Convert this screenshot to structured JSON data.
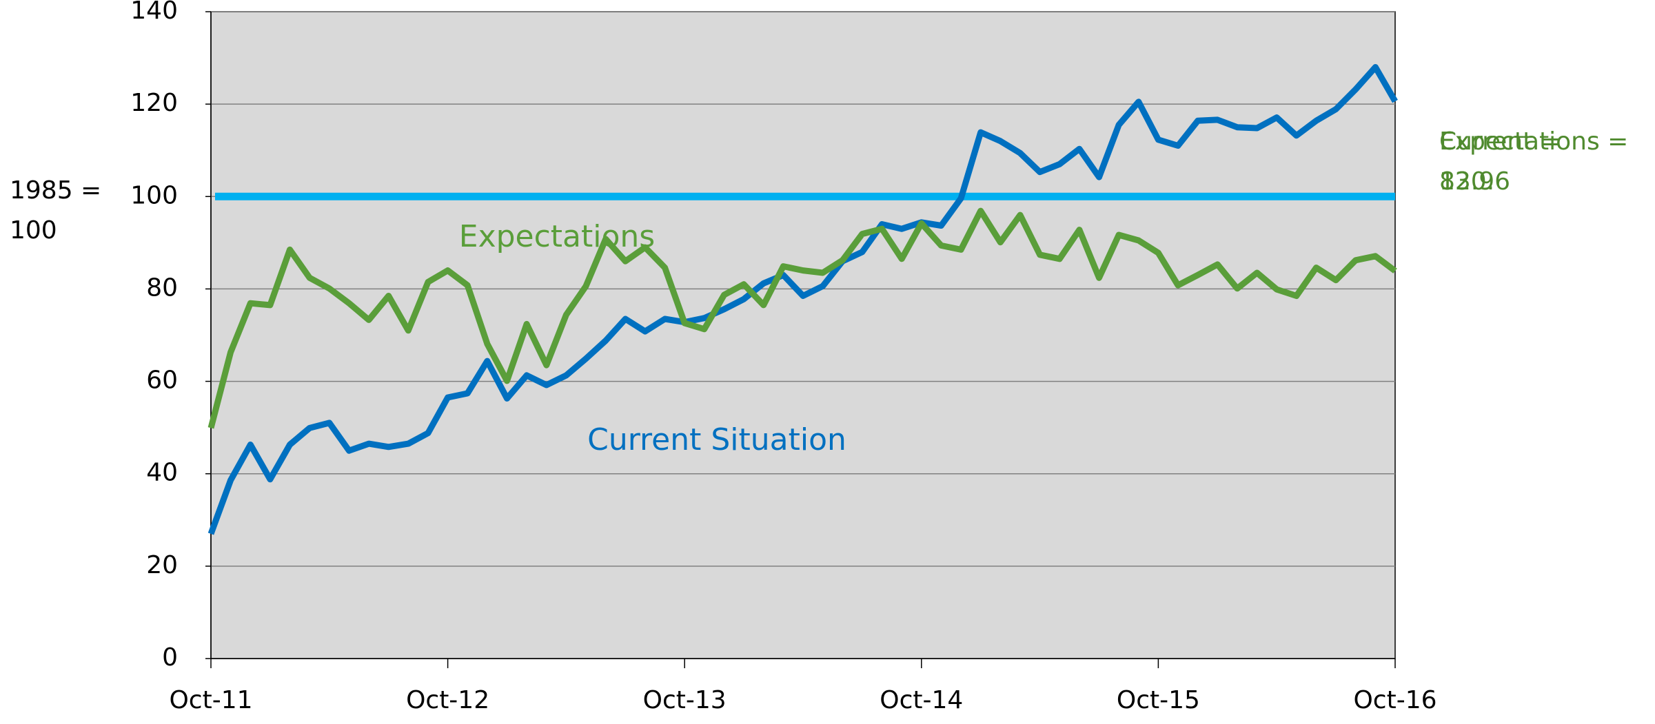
{
  "chart_data": {
    "type": "line",
    "ylabel": "1985 = 100",
    "categories": [
      "Oct-11",
      null,
      null,
      null,
      null,
      null,
      null,
      null,
      null,
      null,
      null,
      null,
      "Oct-12",
      null,
      null,
      null,
      null,
      null,
      null,
      null,
      null,
      null,
      null,
      null,
      "Oct-13",
      null,
      null,
      null,
      null,
      null,
      null,
      null,
      null,
      null,
      null,
      null,
      "Oct-14",
      null,
      null,
      null,
      null,
      null,
      null,
      null,
      null,
      null,
      null,
      null,
      "Oct-15",
      null,
      null,
      null,
      null,
      null,
      null,
      null,
      null,
      null,
      null,
      null,
      "Oct-16"
    ],
    "series": [
      {
        "name": "Current Situation",
        "color": "#0070c0",
        "values": [
          27,
          38.6,
          46.3,
          38.8,
          46.3,
          49.9,
          51,
          45,
          46.5,
          45.8,
          46.5,
          48.8,
          56.5,
          57.4,
          64.4,
          56.3,
          61.3,
          59.2,
          61.3,
          64.9,
          68.8,
          73.5,
          70.8,
          73.5,
          72.8,
          73.7,
          75.6,
          77.8,
          81.2,
          83,
          78.5,
          80.6,
          86,
          88,
          94,
          93,
          94.4,
          93.7,
          99.6,
          113.9,
          112,
          109.4,
          105.3,
          107,
          110.3,
          104.2,
          115.5,
          120.5,
          112.3,
          111,
          116.4,
          116.6,
          115,
          114.8,
          117.1,
          113.2,
          116.4,
          118.9,
          123.2,
          128,
          120.6
        ]
      },
      {
        "name": "Expectations",
        "color": "#5a9e3a",
        "values": [
          49.9,
          66.3,
          76.9,
          76.5,
          88.5,
          82.4,
          80.1,
          76.9,
          73.3,
          78.5,
          71,
          81.5,
          84,
          80.8,
          68.1,
          60.1,
          72.4,
          63.5,
          74.4,
          80.6,
          90.8,
          86,
          89,
          84.6,
          72.6,
          71.3,
          78.7,
          81,
          76.5,
          84.9,
          84,
          83.5,
          86.2,
          91.9,
          93,
          86.5,
          94.2,
          89.4,
          88.5,
          96.9,
          90.1,
          96,
          87.4,
          86.5,
          92.8,
          82.4,
          91.7,
          90.5,
          87.8,
          80.8,
          83,
          85.3,
          80.1,
          83.5,
          79.9,
          78.5,
          84.6,
          81.9,
          86.2,
          87.1,
          83.9
        ]
      }
    ],
    "reference_line": {
      "value": 100,
      "color": "#00b0f0"
    },
    "annotations": [
      "Expectations = 83.9",
      "Current = 120.6"
    ],
    "annotation_color": "#4f8a2e",
    "ylim": [
      0,
      140
    ],
    "yticks": [
      0,
      20,
      40,
      60,
      80,
      100,
      120,
      140
    ],
    "grid": true,
    "plot_background": "#d9d9d9"
  }
}
